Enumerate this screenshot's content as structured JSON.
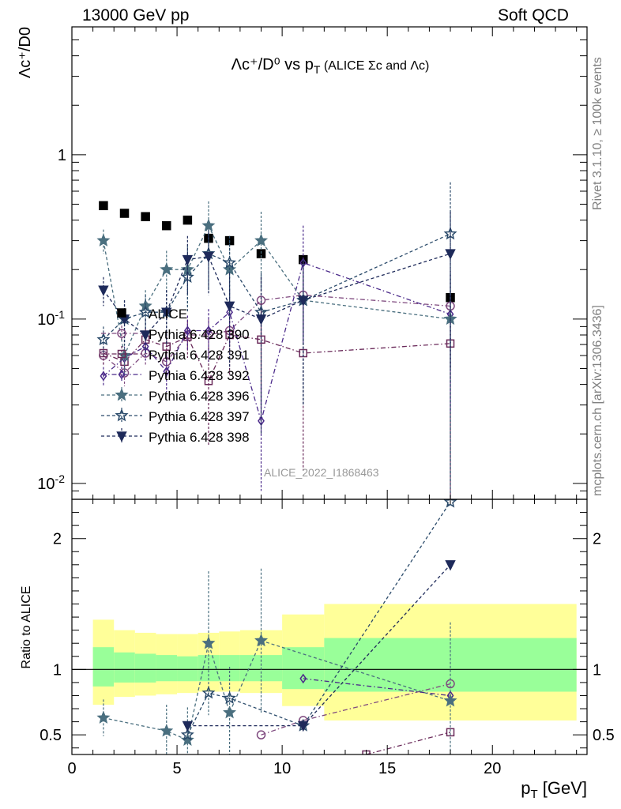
{
  "header": {
    "energy_label": "13000 GeV pp",
    "process_label": "Soft QCD"
  },
  "side_labels": {
    "rivet": "Rivet 3.1.10, ≥ 100k events",
    "source": "mcplots.cern.ch [arXiv:1306.3436]"
  },
  "chart_data": [
    {
      "type": "scatter",
      "title": "Λc⁺/D⁰ vs p_T (ALICE Σc and Λc)",
      "ylabel": "Λc⁺/D0",
      "xlabel": "p_T [GeV]",
      "analysis_id": "ALICE_2022_I1868463",
      "xlim": [
        0,
        24.5
      ],
      "ylim": [
        0.008,
        6
      ],
      "yscale": "log",
      "yticks": [
        {
          "value": 1,
          "label": "1"
        },
        {
          "value": 0.1,
          "label": "10^-1"
        },
        {
          "value": 0.01,
          "label": "10^-2"
        }
      ],
      "legend_position": "middle-left",
      "x": [
        1.5,
        2.5,
        3.5,
        4.5,
        5.5,
        6.5,
        7.5,
        9,
        11,
        18
      ],
      "series": [
        {
          "name": "ALICE",
          "color": "#000000",
          "marker": "square-filled",
          "line": "none",
          "x": [
            1.5,
            2.5,
            3.5,
            4.5,
            5.5,
            6.5,
            7.5,
            9,
            11,
            18
          ],
          "values": [
            0.49,
            0.44,
            0.42,
            0.37,
            0.4,
            0.31,
            0.3,
            0.25,
            0.23,
            0.135
          ]
        },
        {
          "name": "Pythia 6.428 390",
          "color": "#7f4a7f",
          "marker": "circle-open",
          "line": "dashdot",
          "x": [
            1.5,
            2.5,
            3.5,
            4.5,
            5.5,
            6.5,
            7.5,
            9,
            11,
            18
          ],
          "values": [
            0.06,
            0.047,
            0.062,
            0.055,
            0.08,
            0.08,
            0.085,
            0.13,
            0.14,
            0.12
          ],
          "errors": [
            0.008,
            0.008,
            0.01,
            0.01,
            0.015,
            0.02,
            0.025,
            0.05,
            0.06,
            0.08
          ]
        },
        {
          "name": "Pythia 6.428 391",
          "color": "#6a2a5a",
          "marker": "square-open",
          "line": "dashdot",
          "x": [
            1.5,
            2.5,
            3.5,
            4.5,
            5.5,
            6.5,
            7.5,
            9,
            11,
            18
          ],
          "values": [
            0.062,
            0.055,
            0.075,
            0.068,
            0.078,
            0.042,
            0.08,
            0.075,
            0.062,
            0.071
          ],
          "errors": [
            0.01,
            0.01,
            0.012,
            0.015,
            0.02,
            0.025,
            0.035,
            0.05,
            0.05,
            0.07
          ]
        },
        {
          "name": "Pythia 6.428 392",
          "color": "#4b2a8a",
          "marker": "diamond-open",
          "line": "dashdot",
          "x": [
            1.5,
            2.5,
            3.5,
            4.5,
            5.5,
            6.5,
            7.5,
            9,
            11,
            18
          ],
          "values": [
            0.045,
            0.058,
            0.068,
            0.048,
            0.085,
            0.085,
            0.11,
            0.024,
            0.22,
            0.107
          ],
          "errors": [
            0.006,
            0.01,
            0.012,
            0.012,
            0.02,
            0.03,
            0.04,
            0.015,
            0.15,
            0.08
          ]
        },
        {
          "name": "Pythia 6.428 396",
          "color": "#4a6f7f",
          "marker": "star-filled",
          "line": "dashed",
          "x": [
            1.5,
            2.5,
            3.5,
            4.5,
            5.5,
            6.5,
            7.5,
            9,
            11,
            18
          ],
          "values": [
            0.3,
            0.06,
            0.12,
            0.2,
            0.2,
            0.37,
            0.2,
            0.3,
            0.13,
            0.1
          ],
          "errors": [
            0.05,
            0.015,
            0.03,
            0.06,
            0.08,
            0.15,
            0.1,
            0.15,
            0.1,
            0.09
          ]
        },
        {
          "name": "Pythia 6.428 397",
          "color": "#2a4a6a",
          "marker": "star-open",
          "line": "dashed",
          "x": [
            1.5,
            2.5,
            3.5,
            4.5,
            5.5,
            6.5,
            7.5,
            9,
            11,
            18
          ],
          "values": [
            0.075,
            0.1,
            0.11,
            0.11,
            0.18,
            0.25,
            0.22,
            0.11,
            0.13,
            0.33
          ],
          "errors": [
            0.015,
            0.03,
            0.03,
            0.04,
            0.07,
            0.1,
            0.1,
            0.08,
            0.1,
            0.35
          ]
        },
        {
          "name": "Pythia 6.428 398",
          "color": "#1e2a5a",
          "marker": "triangle-down-filled",
          "line": "dashed",
          "x": [
            1.5,
            2.5,
            3.5,
            4.5,
            5.5,
            6.5,
            7.5,
            9,
            11,
            18
          ],
          "values": [
            0.15,
            0.1,
            0.08,
            0.11,
            0.23,
            0.24,
            0.12,
            0.1,
            0.13,
            0.25
          ],
          "errors": [
            0.03,
            0.03,
            0.02,
            0.04,
            0.09,
            0.1,
            0.07,
            0.08,
            0.1,
            0.2
          ]
        }
      ]
    },
    {
      "type": "scatter",
      "ylabel": "Ratio to ALICE",
      "xlabel": "p_T [GeV]",
      "xlim": [
        0,
        24.5
      ],
      "ylim": [
        0.35,
        2.3
      ],
      "xticks": [
        0,
        5,
        10,
        15,
        20
      ],
      "yticks": [
        {
          "value": 0.5,
          "label": "0.5"
        },
        {
          "value": 1,
          "label": "1"
        },
        {
          "value": 2,
          "label": "2"
        }
      ],
      "reference_line": 1,
      "bands": [
        {
          "x0": 1,
          "x1": 2,
          "inner": [
            0.87,
            1.17
          ],
          "outer": [
            0.73,
            1.38
          ]
        },
        {
          "x0": 2,
          "x1": 3,
          "inner": [
            0.9,
            1.13
          ],
          "outer": [
            0.79,
            1.3
          ]
        },
        {
          "x0": 3,
          "x1": 4,
          "inner": [
            0.9,
            1.12
          ],
          "outer": [
            0.8,
            1.28
          ]
        },
        {
          "x0": 4,
          "x1": 5,
          "inner": [
            0.91,
            1.11
          ],
          "outer": [
            0.81,
            1.27
          ]
        },
        {
          "x0": 5,
          "x1": 6,
          "inner": [
            0.91,
            1.1
          ],
          "outer": [
            0.82,
            1.27
          ]
        },
        {
          "x0": 6,
          "x1": 7,
          "inner": [
            0.91,
            1.11
          ],
          "outer": [
            0.83,
            1.28
          ]
        },
        {
          "x0": 7,
          "x1": 8,
          "inner": [
            0.91,
            1.11
          ],
          "outer": [
            0.83,
            1.29
          ]
        },
        {
          "x0": 8,
          "x1": 10,
          "inner": [
            0.91,
            1.11
          ],
          "outer": [
            0.82,
            1.3
          ]
        },
        {
          "x0": 10,
          "x1": 12,
          "inner": [
            0.85,
            1.17
          ],
          "outer": [
            0.72,
            1.42
          ]
        },
        {
          "x0": 12,
          "x1": 24,
          "inner": [
            0.83,
            1.24
          ],
          "outer": [
            0.61,
            1.5
          ]
        }
      ],
      "band_colors": {
        "inner": "#99ff99",
        "outer": "#ffff99"
      },
      "series": [
        {
          "name": "Pythia 6.428 390",
          "x": [
            9,
            11,
            18
          ],
          "values": [
            0.5,
            0.61,
            0.89
          ]
        },
        {
          "name": "Pythia 6.428 391",
          "x": [
            14,
            18
          ],
          "values": [
            0.35,
            0.52
          ]
        },
        {
          "name": "Pythia 6.428 392",
          "x": [
            11,
            18
          ],
          "values": [
            0.93,
            0.8
          ]
        },
        {
          "name": "Pythia 6.428 396",
          "x": [
            1.5,
            4.5,
            5.5,
            6.5,
            7.5,
            9,
            18
          ],
          "values": [
            0.63,
            0.53,
            0.46,
            1.2,
            0.67,
            1.22,
            0.76
          ],
          "errors": [
            0.14,
            0.2,
            0.25,
            0.55,
            0.35,
            0.55,
            0.6
          ]
        },
        {
          "name": "Pythia 6.428 397",
          "x": [
            5.5,
            6.5,
            7.5,
            11,
            18
          ],
          "values": [
            0.5,
            0.82,
            0.78,
            0.57,
            2.28
          ]
        },
        {
          "name": "Pythia 6.428 398",
          "x": [
            5.5,
            11,
            18
          ],
          "values": [
            0.57,
            0.57,
            1.8
          ]
        }
      ]
    }
  ]
}
